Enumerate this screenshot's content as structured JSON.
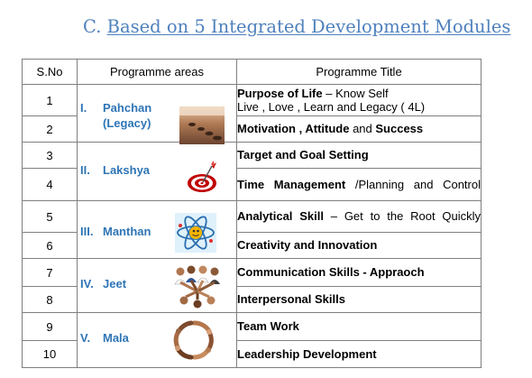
{
  "heading": {
    "prefix": "C.",
    "text": "Based on 5 Integrated Development Modules"
  },
  "table": {
    "headers": {
      "sno": "S.No",
      "area": "Programme areas",
      "title": "Programme Title"
    },
    "rows": [
      {
        "sno": "1"
      },
      {
        "sno": "2"
      },
      {
        "sno": "3"
      },
      {
        "sno": "4"
      },
      {
        "sno": "5"
      },
      {
        "sno": "6"
      },
      {
        "sno": "7"
      },
      {
        "sno": "8"
      },
      {
        "sno": "9"
      },
      {
        "sno": "10"
      }
    ],
    "areas": [
      {
        "num": "I.",
        "name": "Pahchan",
        "sub": "(Legacy)",
        "icon": "footprints-beach-icon"
      },
      {
        "num": "II.",
        "name": "Lakshya",
        "icon": "target-dart-icon"
      },
      {
        "num": "III.",
        "name": "Manthan",
        "icon": "atom-icon"
      },
      {
        "num": "IV.",
        "name": "Jeet",
        "icon": "team-huddle-icon"
      },
      {
        "num": "V.",
        "name": "Mala",
        "icon": "hands-circle-icon"
      }
    ],
    "titles": {
      "t1": {
        "bold": "Purpose of Life",
        "rest": " – Know Self",
        "line2": "Live , Love , Learn and Legacy ( 4L)"
      },
      "t2": {
        "b1": "Motivation , Attitude",
        "mid": " and ",
        "b2": "Success"
      },
      "t3": {
        "bold": "Target and Goal Setting"
      },
      "t4": {
        "bold": "Time Management",
        "rest": " /Planning and Control"
      },
      "t5": {
        "bold": "Analytical Skill",
        "rest": " – Get to the Root Quickly"
      },
      "t6": {
        "bold": "Creativity and Innovation"
      },
      "t7": {
        "bold": "Communication Skills - Appraoch"
      },
      "t8": {
        "bold": "Interpersonal Skills"
      },
      "t9": {
        "bold": "Team Work"
      },
      "t10": {
        "bold": "Leadership Development"
      }
    }
  }
}
